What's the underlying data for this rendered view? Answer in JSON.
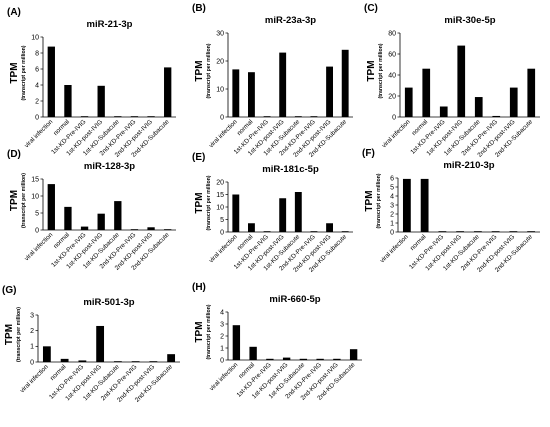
{
  "figure": {
    "categories": [
      "viral infection",
      "normal",
      "1st-KD-Pre-IVIG",
      "1st-KD-post-IVIG",
      "1st-KD-Subacute",
      "2nd-KD-Pre-IVIG",
      "2nd-KD-post-IVIG",
      "2nd-KD-Subacute"
    ],
    "y_label_main": "TPM",
    "y_label_sub": "(transcript per million)",
    "bar_color": "#000000"
  },
  "chart_data": [
    {
      "panel": "(A)",
      "type": "bar",
      "title": "miR-21-3p",
      "ylim": [
        0,
        10
      ],
      "ticks": [
        0,
        2,
        4,
        6,
        8,
        10
      ],
      "values": [
        8.8,
        4.0,
        0.1,
        3.9,
        0.1,
        0.1,
        0.1,
        6.2
      ]
    },
    {
      "panel": "(B)",
      "type": "bar",
      "title": "miR-23a-3p",
      "ylim": [
        0,
        30
      ],
      "ticks": [
        0,
        10,
        20,
        30
      ],
      "values": [
        17,
        16,
        0,
        23,
        0,
        0,
        18,
        24
      ]
    },
    {
      "panel": "(C)",
      "type": "bar",
      "title": "miR-30e-5p",
      "ylim": [
        0,
        80
      ],
      "ticks": [
        0,
        20,
        40,
        60,
        80
      ],
      "values": [
        28,
        46,
        10,
        68,
        19,
        1,
        28,
        46
      ]
    },
    {
      "panel": "(D)",
      "type": "bar",
      "title": "miR-128-3p",
      "ylim": [
        0,
        15
      ],
      "ticks": [
        0,
        5,
        10,
        15
      ],
      "values": [
        13.5,
        6.8,
        1.0,
        4.8,
        8.5,
        0.2,
        0.8,
        0.2
      ]
    },
    {
      "panel": "(E)",
      "type": "bar",
      "title": "miR-181c-5p",
      "ylim": [
        0,
        20
      ],
      "ticks": [
        0,
        5,
        10,
        15,
        20
      ],
      "values": [
        15,
        3.5,
        0.2,
        13.5,
        16,
        0.2,
        3.5,
        0.3
      ]
    },
    {
      "panel": "(F)",
      "type": "bar",
      "title": "miR-210-3p",
      "ylim": [
        0,
        6
      ],
      "ticks": [
        0,
        1,
        2,
        3,
        4,
        5,
        6
      ],
      "values": [
        5.9,
        5.9,
        0.08,
        0.08,
        0.08,
        0.08,
        0.08,
        0.08
      ]
    },
    {
      "panel": "(G)",
      "type": "bar",
      "title": "miR-501-3p",
      "ylim": [
        0,
        3
      ],
      "ticks": [
        0,
        1,
        2,
        3
      ],
      "values": [
        1.0,
        0.2,
        0.1,
        2.3,
        0.05,
        0.05,
        0.05,
        0.5
      ]
    },
    {
      "panel": "(H)",
      "type": "bar",
      "title": "miR-660-5p",
      "ylim": [
        0,
        4
      ],
      "ticks": [
        0,
        1,
        2,
        3,
        4
      ],
      "values": [
        2.9,
        1.1,
        0.1,
        0.2,
        0.1,
        0.1,
        0.1,
        0.9
      ]
    }
  ]
}
